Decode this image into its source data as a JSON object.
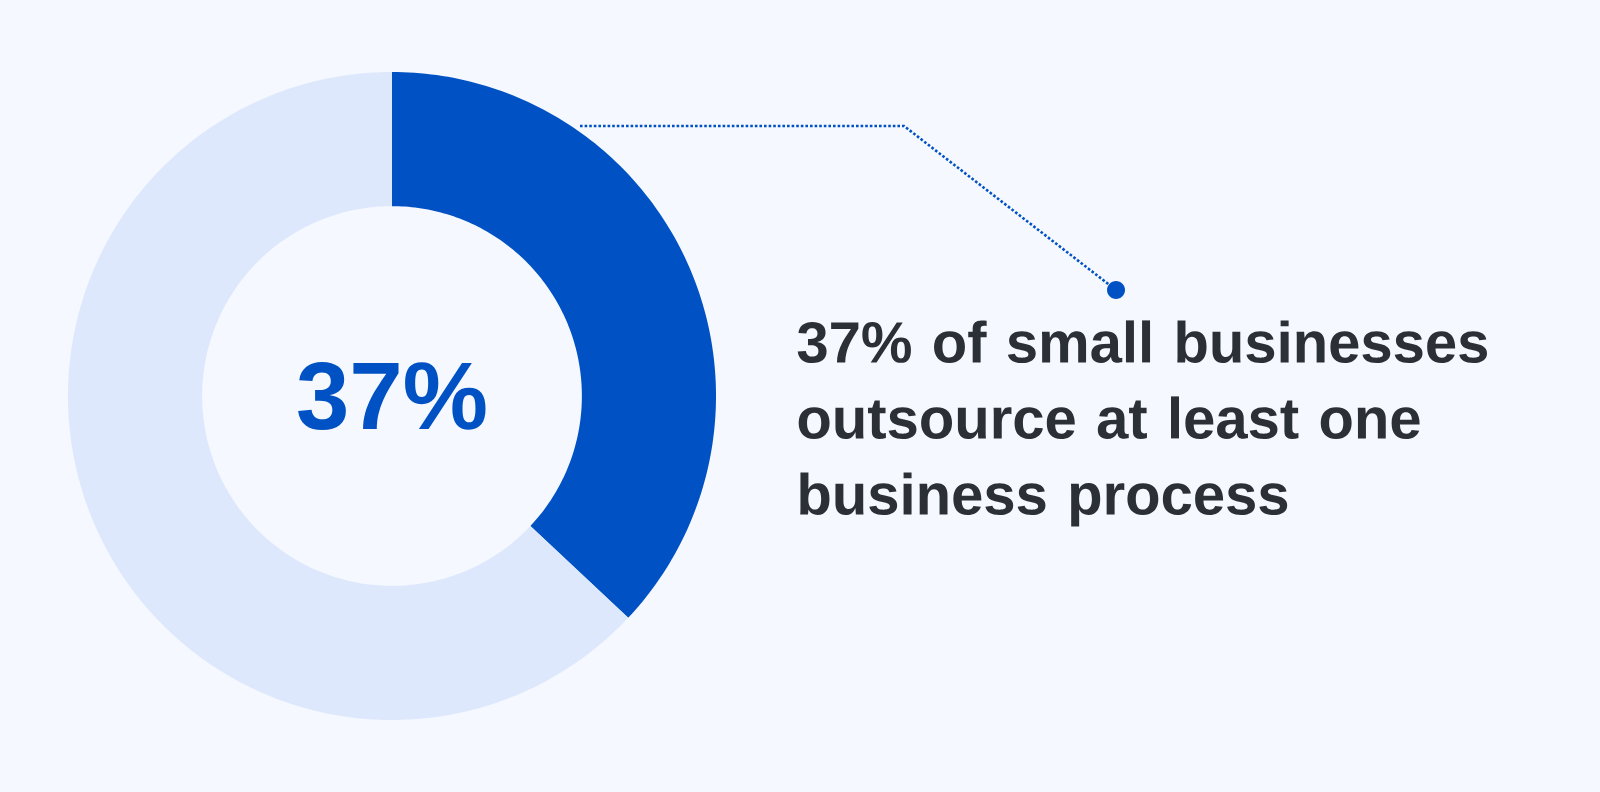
{
  "chart_data": {
    "type": "donut",
    "categories": [
      null,
      null
    ],
    "values": [
      37,
      63
    ],
    "colors": [
      "#0052c4",
      "#dde8fc"
    ],
    "annotations": [
      "37%",
      "37% of small businesses outsource at least one business process"
    ]
  }
}
